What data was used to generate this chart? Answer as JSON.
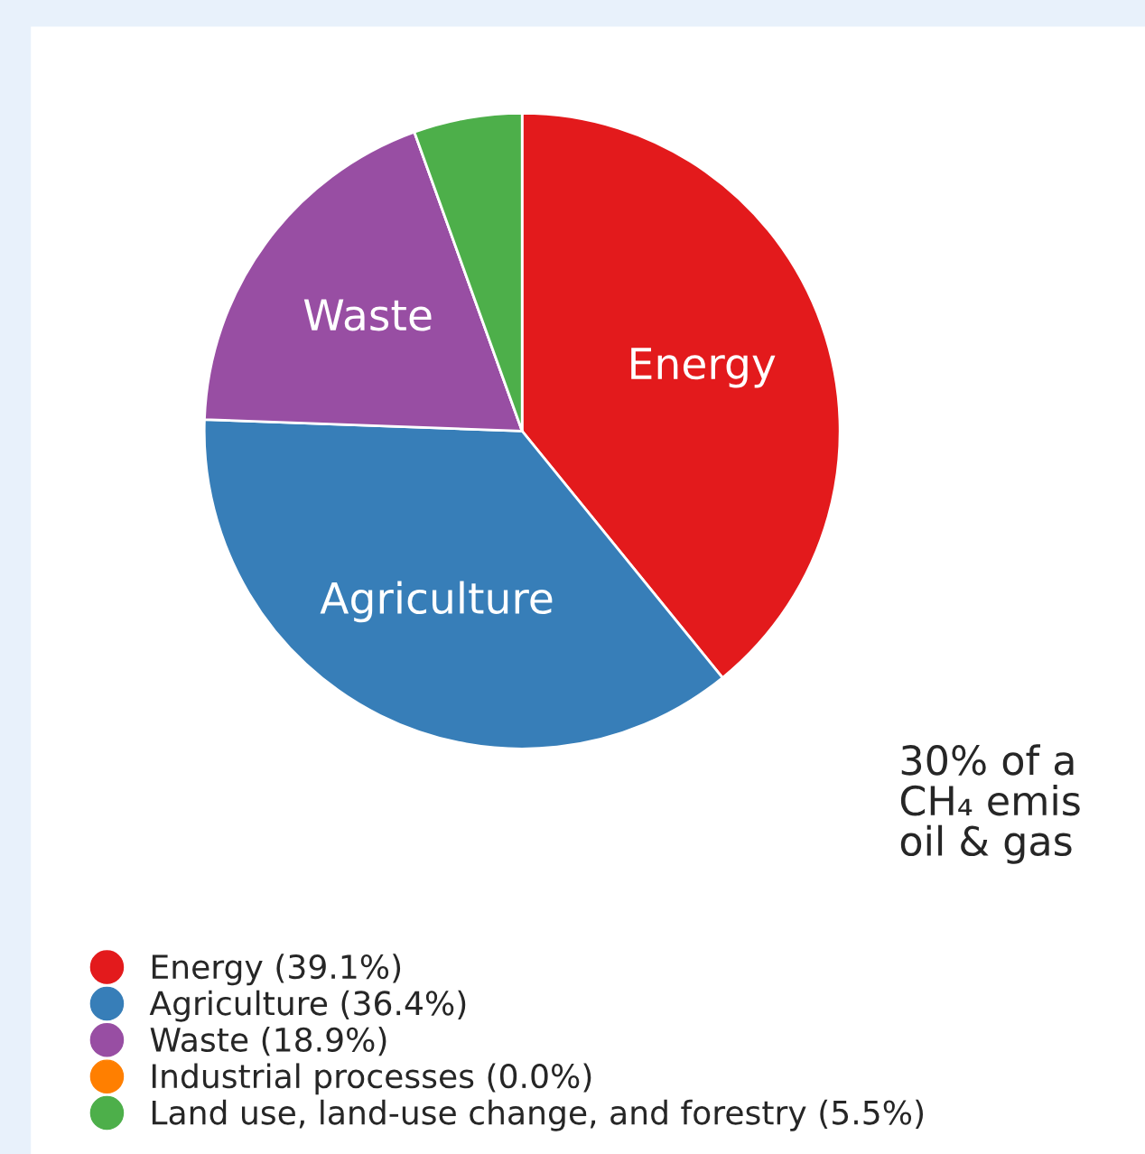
{
  "chart_data": {
    "type": "pie",
    "categories": [
      "Energy",
      "Agriculture",
      "Waste",
      "Industrial processes",
      "Land use, land-use change, and forestry"
    ],
    "values": [
      39.1,
      36.4,
      18.9,
      0.0,
      5.5
    ],
    "colors": [
      "#e31a1c",
      "#377eb8",
      "#984ea3",
      "#ff7f00",
      "#4daf4a"
    ],
    "value_labels": [
      "(39.1%)",
      "(36.4%)",
      "(18.9%)",
      "(0.0%)",
      "(5.5%)"
    ],
    "legend": "bottom left",
    "annotations": [
      "30% of a\nCH₄ emis\noil & gas"
    ]
  }
}
